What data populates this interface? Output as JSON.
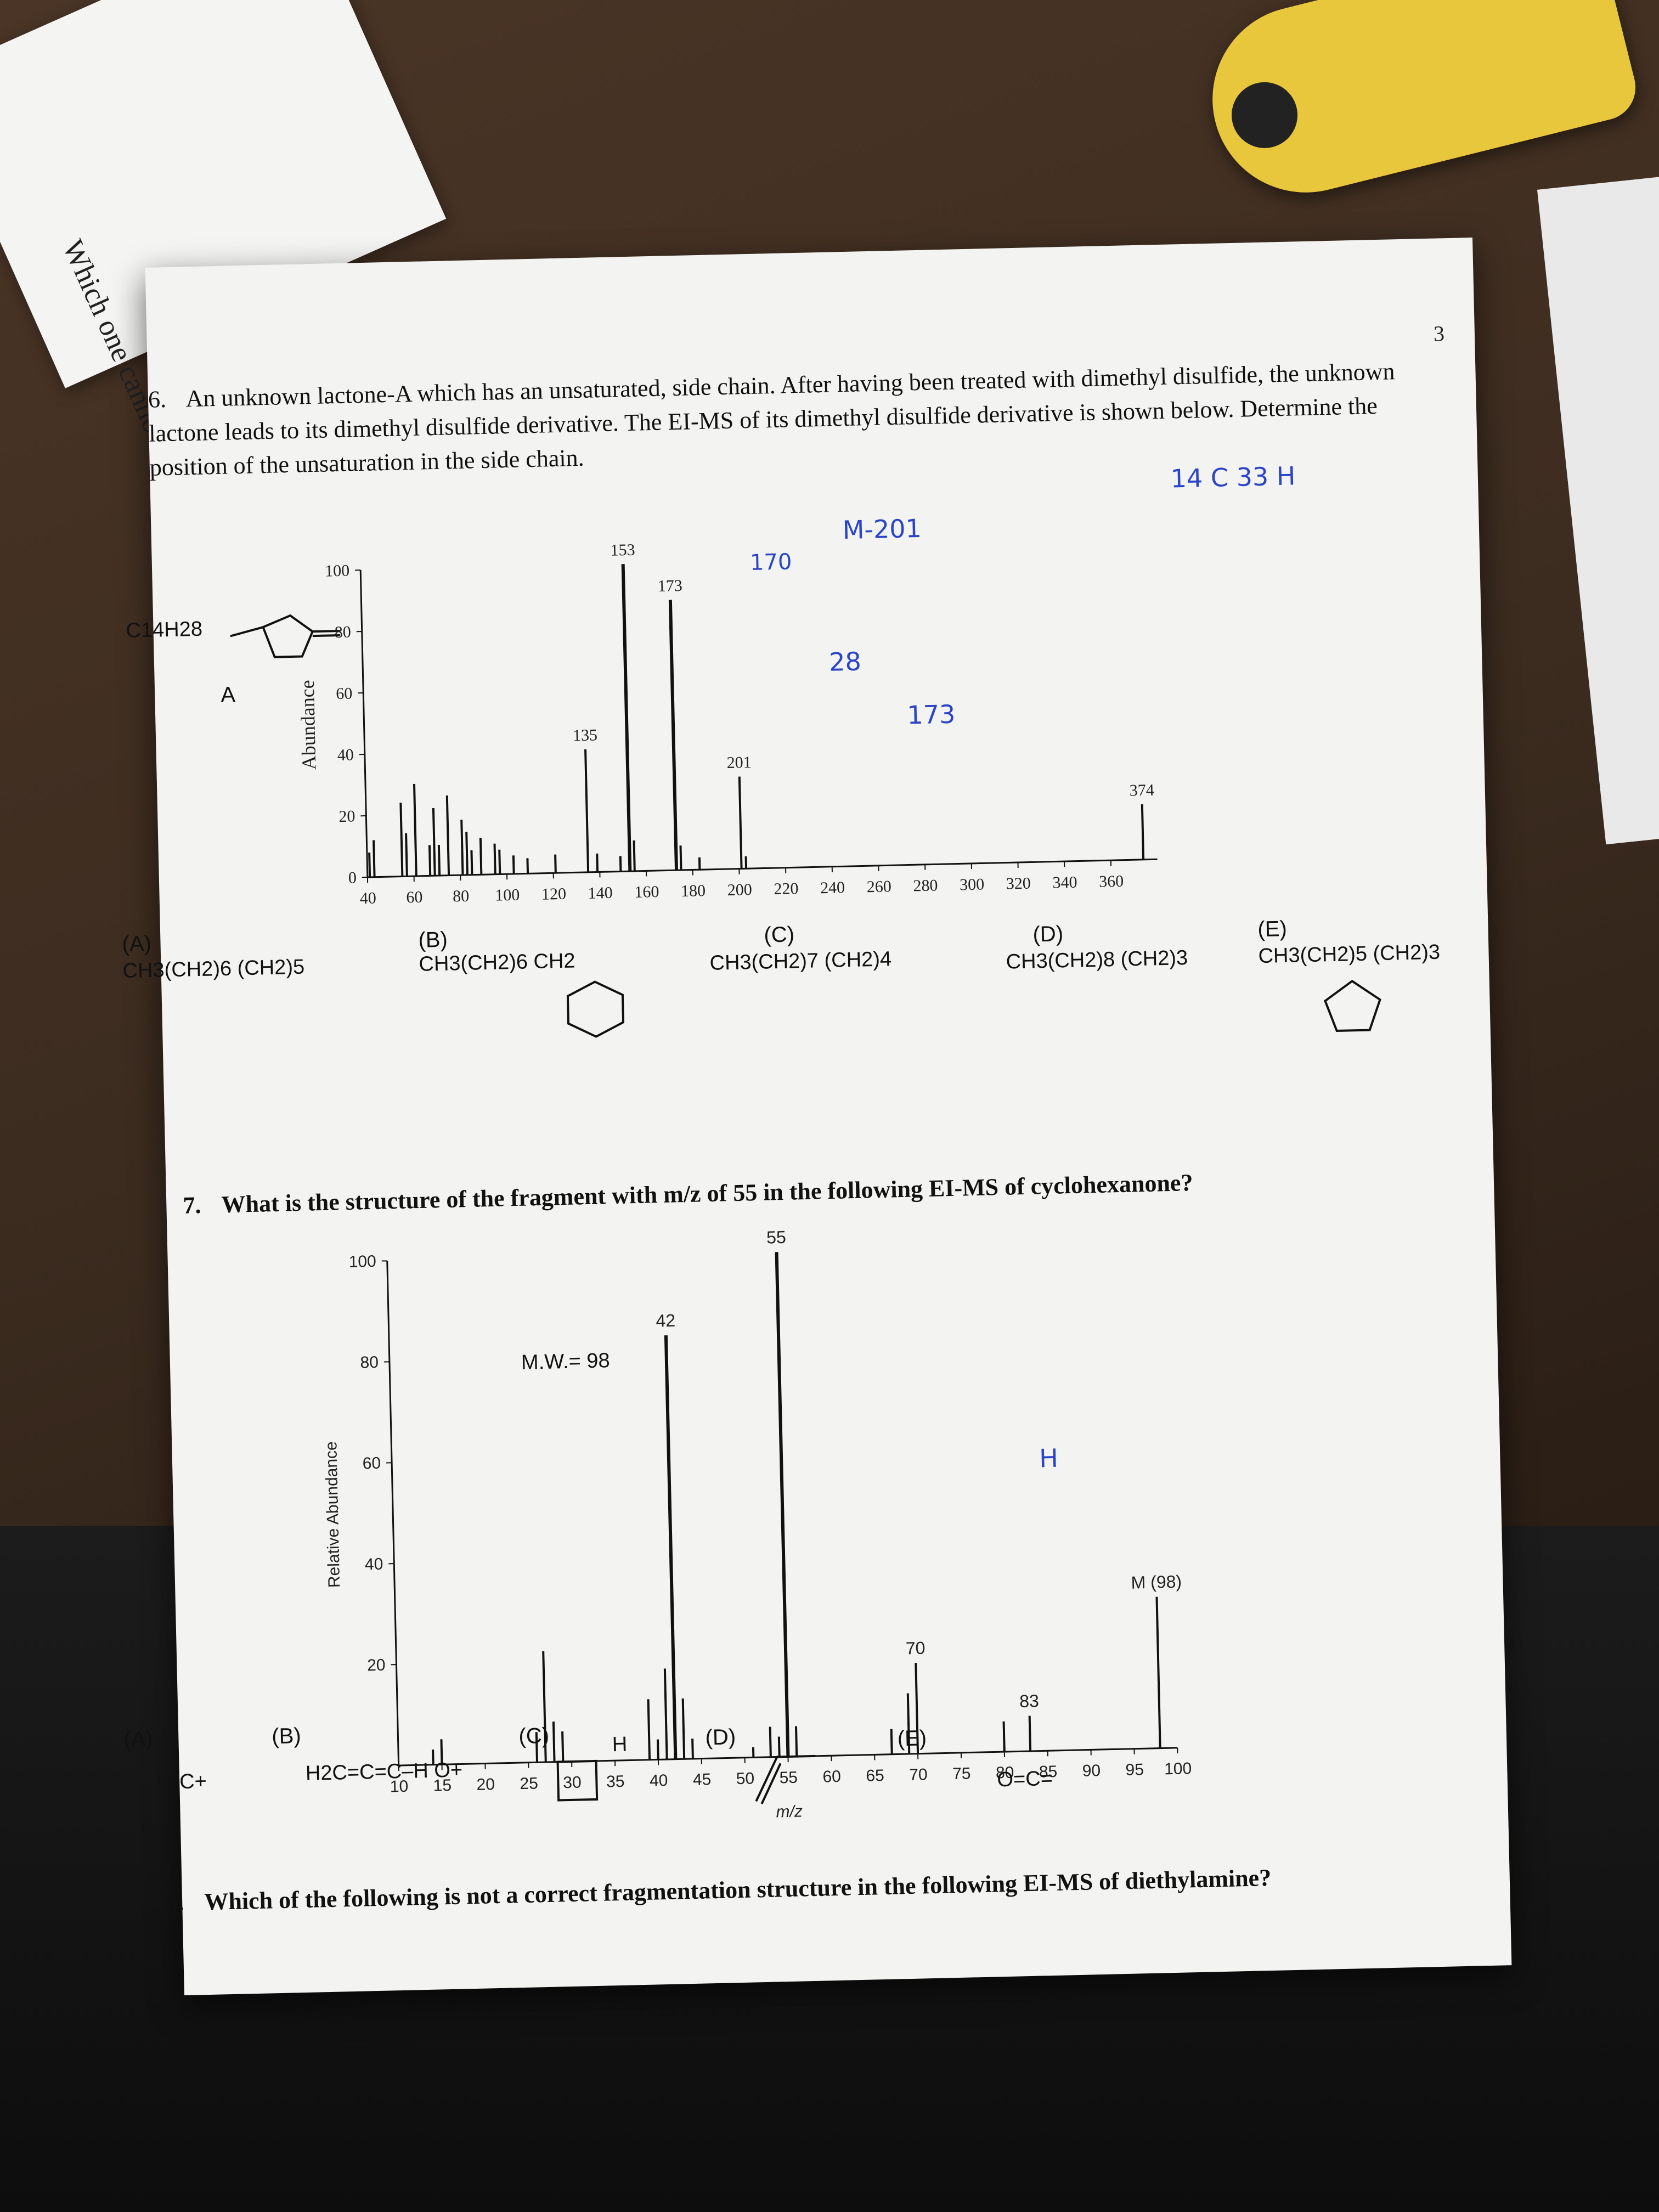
{
  "page": {
    "number": "3",
    "q6": {
      "num": "6.",
      "text": "An unknown lactone-A which has an unsaturated, side chain. After having been treated with dimethyl disulfide, the unknown lactone leads to its dimethyl disulfide derivative. The EI-MS of its dimethyl disulfide derivative is shown below. Determine the position of the unsaturation in the side chain."
    },
    "q6_structure": {
      "formula": "C14H28",
      "label": "A"
    },
    "q6_options": [
      {
        "letter": "(A)",
        "text": "CH3(CH2)6  (CH2)5"
      },
      {
        "letter": "(B)",
        "text": "CH3(CH2)6 CH2"
      },
      {
        "letter": "(C)",
        "text": "CH3(CH2)7  (CH2)4"
      },
      {
        "letter": "(D)",
        "text": "CH3(CH2)8  (CH2)3"
      },
      {
        "letter": "(E)",
        "text": "CH3(CH2)5  (CH2)3"
      }
    ],
    "q7": {
      "num": "7.",
      "text": "What is the structure of the fragment with m/z of 55 in the following EI-MS of cyclohexanone?",
      "mw_label": "M.W.= 98"
    },
    "q7_options": [
      {
        "letter": "(A)",
        "text": "C+"
      },
      {
        "letter": "(B)",
        "text": "H2C=C=C–H  O+"
      },
      {
        "letter": "(C)",
        "text": "H"
      },
      {
        "letter": "(D)",
        "text": ""
      },
      {
        "letter": "(E)",
        "text": "O=C="
      }
    ],
    "q8": {
      "num": "8.",
      "text": "Which of the following is not a correct fragmentation structure in the following EI-MS of diethylamine?"
    },
    "handwritten": {
      "hw1": "14 C  33 H",
      "hw2": "M-201",
      "hw3": "28",
      "hw4": "173",
      "hw5": "170",
      "hw6": "H"
    },
    "background_text": "Which one cannot"
  },
  "chart_data": [
    {
      "type": "bar",
      "ylabel": "Abundance",
      "xlabel": "",
      "xlim": [
        40,
        380
      ],
      "ylim": [
        0,
        100
      ],
      "x_ticks": [
        40,
        60,
        80,
        100,
        120,
        140,
        160,
        180,
        200,
        220,
        240,
        260,
        280,
        300,
        320,
        340,
        360
      ],
      "y_ticks": [
        0,
        20,
        40,
        60,
        80,
        100
      ],
      "peaks": [
        {
          "x": 41,
          "y": 8
        },
        {
          "x": 43,
          "y": 12
        },
        {
          "x": 55,
          "y": 24
        },
        {
          "x": 57,
          "y": 14
        },
        {
          "x": 61,
          "y": 30
        },
        {
          "x": 67,
          "y": 10
        },
        {
          "x": 69,
          "y": 22
        },
        {
          "x": 71,
          "y": 10
        },
        {
          "x": 75,
          "y": 26
        },
        {
          "x": 81,
          "y": 18
        },
        {
          "x": 83,
          "y": 14
        },
        {
          "x": 85,
          "y": 8
        },
        {
          "x": 89,
          "y": 12
        },
        {
          "x": 95,
          "y": 10
        },
        {
          "x": 97,
          "y": 8
        },
        {
          "x": 103,
          "y": 6
        },
        {
          "x": 109,
          "y": 5
        },
        {
          "x": 121,
          "y": 6
        },
        {
          "x": 135,
          "y": 40
        },
        {
          "x": 139,
          "y": 6
        },
        {
          "x": 149,
          "y": 5
        },
        {
          "x": 153,
          "y": 100
        },
        {
          "x": 155,
          "y": 10
        },
        {
          "x": 173,
          "y": 88
        },
        {
          "x": 175,
          "y": 8
        },
        {
          "x": 183,
          "y": 4
        },
        {
          "x": 201,
          "y": 30
        },
        {
          "x": 203,
          "y": 4
        },
        {
          "x": 374,
          "y": 18
        }
      ],
      "labels": [
        {
          "x": 135,
          "y": 40,
          "text": "135"
        },
        {
          "x": 153,
          "y": 100,
          "text": "153"
        },
        {
          "x": 173,
          "y": 88,
          "text": "173"
        },
        {
          "x": 201,
          "y": 30,
          "text": "201"
        },
        {
          "x": 374,
          "y": 18,
          "text": "374"
        }
      ]
    },
    {
      "type": "bar",
      "xlabel": "m/z",
      "ylabel": "Relative Abundance",
      "xlim": [
        10,
        100
      ],
      "ylim": [
        0,
        100
      ],
      "x_ticks": [
        10,
        15,
        20,
        25,
        30,
        35,
        40,
        45,
        50,
        55,
        60,
        65,
        70,
        75,
        80,
        85,
        90,
        95,
        100
      ],
      "y_ticks": [
        20,
        40,
        60,
        80,
        100
      ],
      "peaks": [
        {
          "x": 14,
          "y": 3
        },
        {
          "x": 15,
          "y": 5
        },
        {
          "x": 26,
          "y": 6
        },
        {
          "x": 27,
          "y": 22
        },
        {
          "x": 28,
          "y": 8
        },
        {
          "x": 29,
          "y": 6
        },
        {
          "x": 39,
          "y": 12
        },
        {
          "x": 40,
          "y": 4
        },
        {
          "x": 41,
          "y": 18
        },
        {
          "x": 42,
          "y": 84
        },
        {
          "x": 43,
          "y": 12
        },
        {
          "x": 44,
          "y": 4
        },
        {
          "x": 51,
          "y": 2
        },
        {
          "x": 53,
          "y": 6
        },
        {
          "x": 54,
          "y": 4
        },
        {
          "x": 55,
          "y": 100
        },
        {
          "x": 56,
          "y": 6
        },
        {
          "x": 67,
          "y": 5
        },
        {
          "x": 69,
          "y": 12
        },
        {
          "x": 70,
          "y": 18
        },
        {
          "x": 80,
          "y": 6
        },
        {
          "x": 83,
          "y": 7
        },
        {
          "x": 98,
          "y": 30
        }
      ],
      "labels": [
        {
          "x": 42,
          "y": 84,
          "text": "42"
        },
        {
          "x": 55,
          "y": 100,
          "text": "55"
        },
        {
          "x": 70,
          "y": 18,
          "text": "70"
        },
        {
          "x": 83,
          "y": 7,
          "text": "83"
        },
        {
          "x": 98,
          "y": 30,
          "text": "M (98)"
        }
      ]
    }
  ]
}
